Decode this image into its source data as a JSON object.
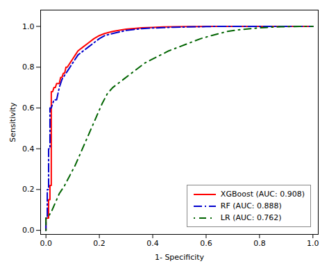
{
  "chart_data": {
    "type": "line",
    "xlabel": "1- Specificity",
    "ylabel": "Sensitivity",
    "xlim": [
      -0.02,
      1.02
    ],
    "ylim": [
      -0.02,
      1.08
    ],
    "xticks": [
      {
        "value": 0.0,
        "label": "0.0"
      },
      0.2,
      0.4,
      0.6,
      0.8,
      {
        "value": 1.0,
        "label": "1.0"
      }
    ],
    "yticks": [
      {
        "value": 0.0,
        "label": "0.0"
      },
      0.2,
      0.4,
      0.6,
      0.8,
      {
        "value": 1.0,
        "label": "1.0"
      }
    ],
    "grid": false,
    "legend": "lower right",
    "series": [
      {
        "name": "XGBoost (AUC: 0.908)",
        "color": "#FF0000",
        "line_style": "solid",
        "x": [
          0.0,
          0.0,
          0.01,
          0.01,
          0.015,
          0.015,
          0.02,
          0.02,
          0.025,
          0.03,
          0.035,
          0.04,
          0.05,
          0.055,
          0.06,
          0.065,
          0.07,
          0.075,
          0.08,
          0.09,
          0.1,
          0.11,
          0.12,
          0.14,
          0.16,
          0.18,
          0.2,
          0.22,
          0.25,
          0.28,
          0.3,
          0.33,
          0.36,
          0.4,
          0.44,
          0.48,
          0.52,
          0.56,
          0.6,
          0.65,
          0.7,
          0.75,
          0.8,
          0.85,
          0.9,
          0.95,
          1.0
        ],
        "values": [
          0.0,
          0.06,
          0.06,
          0.15,
          0.15,
          0.22,
          0.22,
          0.68,
          0.68,
          0.7,
          0.7,
          0.72,
          0.72,
          0.75,
          0.75,
          0.77,
          0.77,
          0.8,
          0.8,
          0.82,
          0.84,
          0.86,
          0.88,
          0.9,
          0.92,
          0.94,
          0.955,
          0.965,
          0.975,
          0.982,
          0.986,
          0.99,
          0.993,
          0.995,
          0.997,
          0.998,
          0.999,
          0.999,
          1.0,
          1.0,
          1.0,
          1.0,
          1.0,
          1.0,
          1.0,
          1.0,
          1.0
        ]
      },
      {
        "name": "RF (AUC: 0.888)",
        "color": "#0000CD",
        "line_style": "dashdot",
        "x": [
          0.0,
          0.0,
          0.005,
          0.005,
          0.01,
          0.01,
          0.015,
          0.015,
          0.02,
          0.025,
          0.03,
          0.04,
          0.045,
          0.05,
          0.055,
          0.06,
          0.07,
          0.08,
          0.09,
          0.1,
          0.11,
          0.12,
          0.14,
          0.16,
          0.18,
          0.2,
          0.22,
          0.25,
          0.28,
          0.3,
          0.33,
          0.36,
          0.4,
          0.44,
          0.48,
          0.52,
          0.56,
          0.6,
          0.65,
          0.7,
          0.75,
          0.8,
          0.85,
          0.9,
          0.95,
          1.0
        ],
        "values": [
          0.0,
          0.06,
          0.06,
          0.2,
          0.2,
          0.4,
          0.4,
          0.6,
          0.6,
          0.62,
          0.64,
          0.64,
          0.67,
          0.7,
          0.72,
          0.74,
          0.76,
          0.78,
          0.8,
          0.82,
          0.84,
          0.86,
          0.88,
          0.9,
          0.92,
          0.94,
          0.955,
          0.965,
          0.974,
          0.98,
          0.985,
          0.989,
          0.992,
          0.994,
          0.996,
          0.997,
          0.998,
          0.999,
          1.0,
          1.0,
          1.0,
          1.0,
          1.0,
          1.0,
          1.0,
          1.0
        ]
      },
      {
        "name": "LR (AUC: 0.762)",
        "color": "#006400",
        "line_style": "dashed",
        "x": [
          0.0,
          0.0,
          0.01,
          0.02,
          0.03,
          0.04,
          0.05,
          0.07,
          0.09,
          0.11,
          0.13,
          0.15,
          0.17,
          0.19,
          0.21,
          0.23,
          0.25,
          0.27,
          0.29,
          0.31,
          0.33,
          0.35,
          0.37,
          0.4,
          0.43,
          0.46,
          0.5,
          0.54,
          0.58,
          0.62,
          0.65,
          0.68,
          0.72,
          0.76,
          0.8,
          0.84,
          0.88,
          0.92,
          0.95,
          1.0
        ],
        "values": [
          0.0,
          0.06,
          0.07,
          0.09,
          0.12,
          0.15,
          0.18,
          0.22,
          0.27,
          0.32,
          0.38,
          0.44,
          0.5,
          0.56,
          0.62,
          0.67,
          0.7,
          0.72,
          0.74,
          0.76,
          0.78,
          0.8,
          0.82,
          0.84,
          0.86,
          0.88,
          0.9,
          0.92,
          0.94,
          0.955,
          0.965,
          0.975,
          0.983,
          0.988,
          0.993,
          0.996,
          0.998,
          0.999,
          1.0,
          1.0
        ]
      }
    ]
  }
}
